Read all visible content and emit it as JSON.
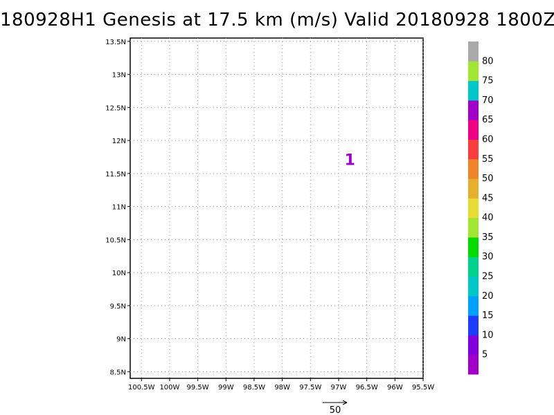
{
  "title": "180928H1 Genesis at 17.5 km (m/s) Valid 20180928 1800Z",
  "map": {
    "lon_range": [
      -100.7,
      -95.5
    ],
    "lat_range": [
      8.4,
      13.55
    ],
    "lon_ticks": [
      -100.5,
      -100,
      -99.5,
      -99,
      -98.5,
      -98,
      -97.5,
      -97,
      -96.5,
      -96,
      -95.5
    ],
    "lat_ticks": [
      8.5,
      9,
      9.5,
      10,
      10.5,
      11,
      11.5,
      12,
      12.5,
      13,
      13.5
    ],
    "lon_tick_labels": [
      "100.5W",
      "100W",
      "99.5W",
      "99W",
      "98.5W",
      "98W",
      "97.5W",
      "97W",
      "96.5W",
      "96W",
      "95.5W"
    ],
    "lat_tick_labels": [
      "8.5N",
      "9N",
      "9.5N",
      "10N",
      "10.5N",
      "11N",
      "11.5N",
      "12N",
      "12.5N",
      "13N",
      "13.5N"
    ],
    "grid": "dotted",
    "storm_symbol": {
      "label": "1",
      "lon": -96.8,
      "lat": 11.7,
      "color": "#a000c8"
    }
  },
  "colorbar": {
    "labels": [
      "5",
      "10",
      "15",
      "20",
      "25",
      "30",
      "35",
      "40",
      "45",
      "50",
      "55",
      "60",
      "65",
      "70",
      "75",
      "80"
    ],
    "colors": [
      "#a000c8",
      "#8200dc",
      "#1e3cff",
      "#00a0ff",
      "#00c8c8",
      "#00d28c",
      "#00dc00",
      "#a0e632",
      "#e6dc32",
      "#e6af2d",
      "#f08228",
      "#fa3c3c",
      "#f00082",
      "#a000c8",
      "#00c8c8",
      "#a0e632",
      "#aaaaaa"
    ]
  },
  "vector_key": {
    "label": "50"
  }
}
